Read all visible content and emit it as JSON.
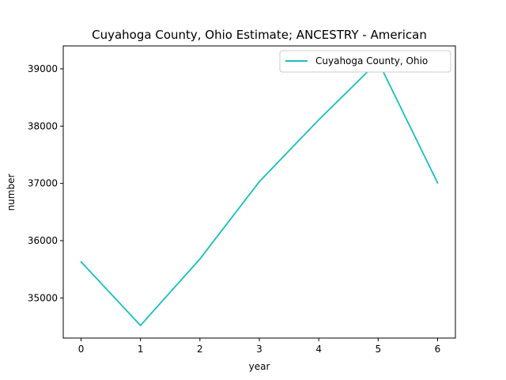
{
  "chart_data": {
    "type": "line",
    "title": "Cuyahoga County, Ohio Estimate; ANCESTRY - American",
    "xlabel": "year",
    "ylabel": "number",
    "x": [
      0,
      1,
      2,
      3,
      4,
      5,
      6
    ],
    "xticks": [
      "0",
      "1",
      "2",
      "3",
      "4",
      "5",
      "6"
    ],
    "yticks": [
      35000,
      36000,
      37000,
      38000,
      39000
    ],
    "xlim": [
      -0.3,
      6.3
    ],
    "ylim": [
      34300,
      39400
    ],
    "grid": false,
    "legend_position": "top-right",
    "series": [
      {
        "name": "Cuyahoga County, Ohio",
        "color": "#17bfbf",
        "values": [
          35630,
          34520,
          35680,
          37030,
          38110,
          39130,
          37010
        ]
      }
    ]
  }
}
